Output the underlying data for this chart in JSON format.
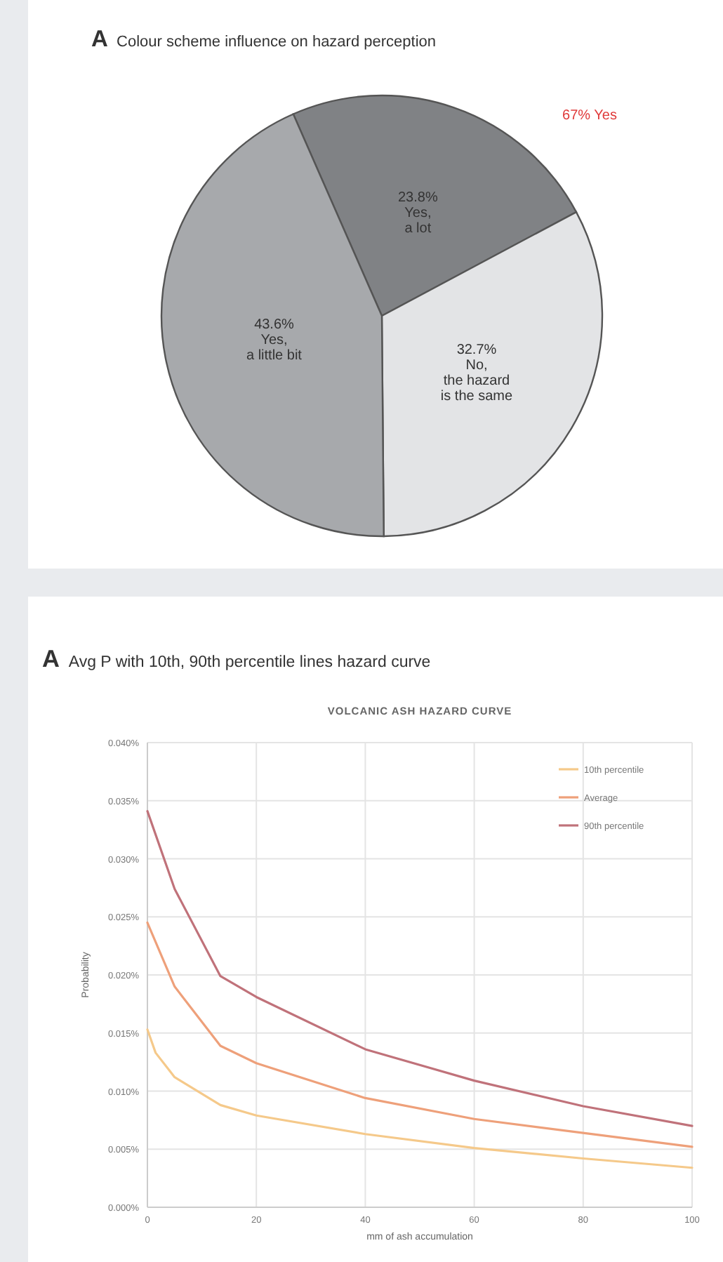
{
  "chart_data": [
    {
      "type": "pie",
      "title": "A  Colour scheme influence on hazard perception",
      "categories": [
        "Yes,\na lot",
        "No,\nthe hazard\nis the same",
        "Yes,\na little bit"
      ],
      "values": [
        23.8,
        32.7,
        43.6
      ],
      "colors": [
        "#808285",
        "#e3e4e6",
        "#a7a9ac"
      ],
      "value_labels": [
        "23.8%",
        "32.7%",
        "43.6%"
      ],
      "annotations": [
        "67% Yes"
      ]
    },
    {
      "type": "line",
      "title": "A  Avg P with 10th, 90th percentile lines hazard curve",
      "subtitle": "VOLCANIC ASH HAZARD CURVE",
      "xlabel": "mm of ash accumulation",
      "ylabel": "Probability",
      "xlim": [
        0,
        100
      ],
      "xticks": [
        0,
        20,
        40,
        60,
        80,
        100
      ],
      "ylim": [
        0,
        0.04
      ],
      "yticks": [
        {
          "value": 0,
          "label": "0.000%"
        },
        {
          "value": 0.005,
          "label": "0.005%"
        },
        {
          "value": 0.01,
          "label": "0.010%"
        },
        {
          "value": 0.015,
          "label": "0.015%"
        },
        {
          "value": 0.02,
          "label": "0.020%"
        },
        {
          "value": 0.025,
          "label": "0.025%"
        },
        {
          "value": 0.03,
          "label": "0.030%"
        },
        {
          "value": 0.035,
          "label": "0.035%"
        },
        {
          "value": 0.04,
          "label": "0.040%"
        }
      ],
      "grid": true,
      "legend": "top right",
      "marker": "none",
      "line_style": "solid",
      "series": [
        {
          "name": "10th percentile",
          "color": "#f5c98a",
          "x": [
            0,
            1.5,
            5,
            13.4,
            20,
            40,
            60,
            80,
            100
          ],
          "values": [
            0.0153,
            0.0133,
            0.0112,
            0.0088,
            0.0079,
            0.0063,
            0.0051,
            0.0042,
            0.0034
          ]
        },
        {
          "name": "Average",
          "color": "#eea07a",
          "x": [
            0,
            5,
            13.4,
            20,
            40,
            60,
            80,
            100
          ],
          "values": [
            0.0245,
            0.019,
            0.0139,
            0.0124,
            0.0094,
            0.0076,
            0.0064,
            0.0052
          ]
        },
        {
          "name": "90th percentile",
          "color": "#c0727a",
          "x": [
            0,
            5,
            13.4,
            20,
            40,
            60,
            80,
            100
          ],
          "values": [
            0.0341,
            0.0274,
            0.0199,
            0.0181,
            0.0136,
            0.0109,
            0.0087,
            0.007
          ]
        }
      ]
    }
  ]
}
